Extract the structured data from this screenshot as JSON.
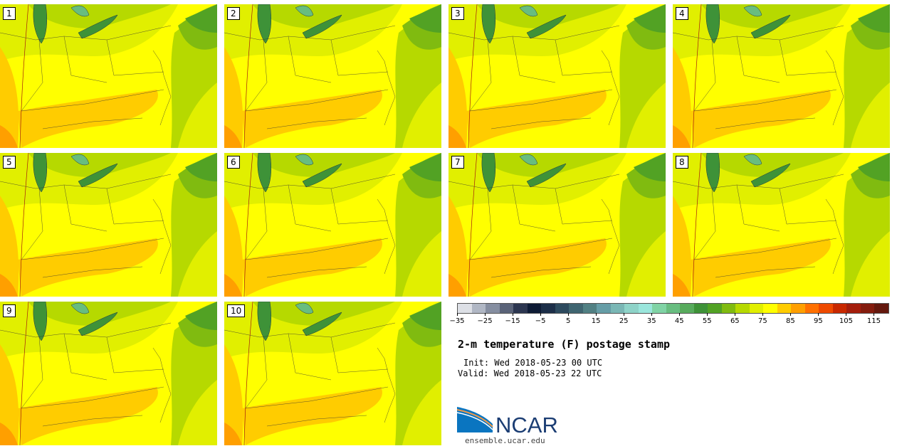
{
  "panels": [
    "1",
    "2",
    "3",
    "4",
    "5",
    "6",
    "7",
    "8",
    "9",
    "10"
  ],
  "title": "2-m temperature (F) postage stamp",
  "init": "Init: Wed 2018-05-23 00 UTC",
  "valid": "Valid: Wed 2018-05-23 22 UTC",
  "logo_text": "NCAR",
  "url": "ensemble.ucar.edu",
  "chart_data": {
    "type": "heatmap",
    "title": "2-m temperature (F) postage stamp",
    "colorbar": {
      "min": -35,
      "max": 120,
      "step": 5,
      "tick_labels": [
        "−35",
        "−25",
        "−15",
        "−5",
        "5",
        "15",
        "25",
        "35",
        "45",
        "55",
        "65",
        "75",
        "85",
        "95",
        "105",
        "115"
      ],
      "tick_values": [
        -35,
        -25,
        -15,
        -5,
        5,
        15,
        25,
        35,
        45,
        55,
        65,
        75,
        85,
        95,
        105,
        115
      ],
      "colors": [
        "#dde0e6",
        "#b0b7c4",
        "#858ea0",
        "#5a6378",
        "#2c3650",
        "#0e1b35",
        "#1c2e48",
        "#2d4a5e",
        "#3f6570",
        "#518083",
        "#669da6",
        "#7ab7b5",
        "#8ed3c8",
        "#9ae6dc",
        "#80d3a5",
        "#68bd80",
        "#58ab5d",
        "#3e9238",
        "#52a224",
        "#80bb10",
        "#b6d900",
        "#e1ef00",
        "#ffff00",
        "#ffcc00",
        "#ff9f00",
        "#ff7000",
        "#ee4a00",
        "#c82800",
        "#a41e0c",
        "#841c0e",
        "#64180e"
      ]
    },
    "members": 10
  }
}
